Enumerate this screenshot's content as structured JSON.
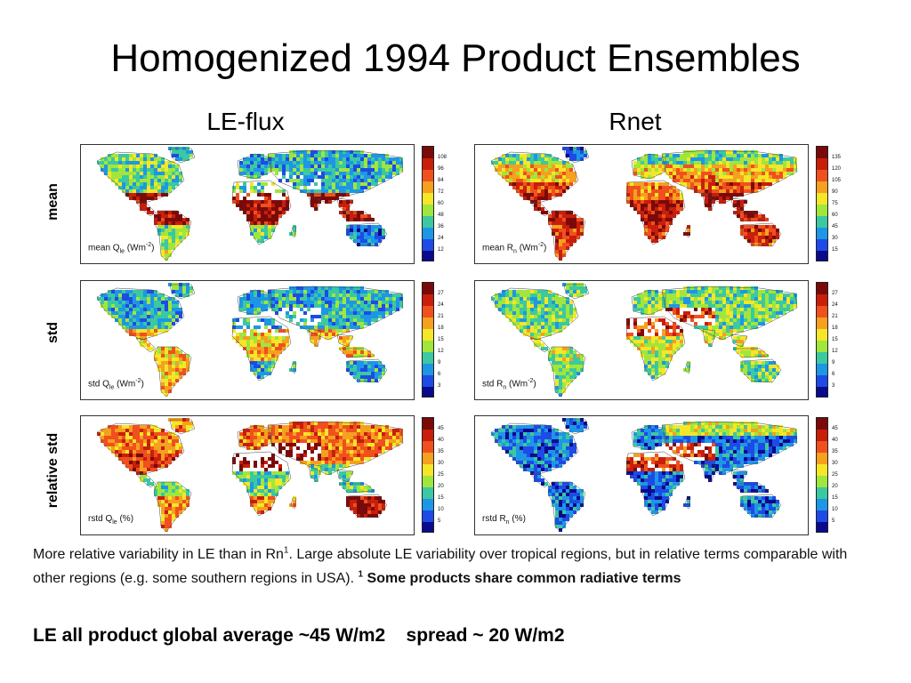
{
  "title": "Homogenized 1994 Product Ensembles",
  "columns": [
    {
      "heading": "LE-flux"
    },
    {
      "heading": "Rnet"
    }
  ],
  "rows": [
    {
      "label": "mean"
    },
    {
      "label": "std"
    },
    {
      "label": "relative std"
    }
  ],
  "panels": {
    "le_mean": {
      "label_prefix": "mean Q",
      "sub": "le",
      "unit": " (Wm",
      "sup": "-2",
      "close": ")",
      "ticks": [
        "108",
        "96",
        "84",
        "72",
        "60",
        "48",
        "36",
        "24",
        "12"
      ]
    },
    "rn_mean": {
      "label_prefix": "mean R",
      "sub": "n",
      "unit": " (Wm",
      "sup": "-2",
      "close": ")",
      "ticks": [
        "135",
        "120",
        "105",
        "90",
        "75",
        "60",
        "45",
        "30",
        "15"
      ]
    },
    "le_std": {
      "label_prefix": "std Q",
      "sub": "le",
      "unit": " (Wm",
      "sup": "-2",
      "close": ")",
      "ticks": [
        "27",
        "24",
        "21",
        "18",
        "15",
        "12",
        "9",
        "6",
        "3"
      ]
    },
    "rn_std": {
      "label_prefix": "std R",
      "sub": "n",
      "unit": " (Wm",
      "sup": "-2",
      "close": ")",
      "ticks": [
        "27",
        "24",
        "21",
        "18",
        "15",
        "12",
        "9",
        "6",
        "3"
      ]
    },
    "le_rstd": {
      "label_prefix": "rstd Q",
      "sub": "le",
      "unit": " (%)",
      "sup": "",
      "close": "",
      "ticks": [
        "45",
        "40",
        "35",
        "30",
        "25",
        "20",
        "15",
        "10",
        "5"
      ]
    },
    "rn_rstd": {
      "label_prefix": "rstd R",
      "sub": "n",
      "unit": " (%)",
      "sup": "",
      "close": "",
      "ticks": [
        "45",
        "40",
        "35",
        "30",
        "25",
        "20",
        "15",
        "10",
        "5"
      ]
    }
  },
  "colormap": [
    "#7a0a0a",
    "#c81e0a",
    "#f0501e",
    "#f5a01e",
    "#f5e628",
    "#a0e63c",
    "#3cc8a0",
    "#1e96e6",
    "#1e4be6",
    "#0a0a8c"
  ],
  "caption": {
    "part1": "More relative variability in LE than in Rn",
    "sup1": "1",
    "part2": ". Large absolute LE variability over tropical regions, but in relative terms comparable with other regions (e.g. some southern regions in USA). ",
    "bold_sup": "1",
    "bold_text": " Some products share common radiative terms"
  },
  "summary": "LE all product global average ~45 W/m2    spread ~ 20 W/m2"
}
